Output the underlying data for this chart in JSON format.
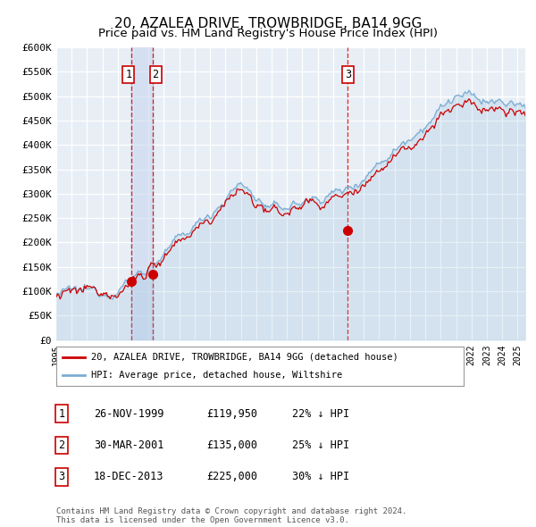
{
  "title": "20, AZALEA DRIVE, TROWBRIDGE, BA14 9GG",
  "subtitle": "Price paid vs. HM Land Registry's House Price Index (HPI)",
  "title_fontsize": 11,
  "subtitle_fontsize": 9.5,
  "ylim": [
    0,
    600000
  ],
  "yticks": [
    0,
    50000,
    100000,
    150000,
    200000,
    250000,
    300000,
    350000,
    400000,
    450000,
    500000,
    550000,
    600000
  ],
  "ytick_labels": [
    "£0",
    "£50K",
    "£100K",
    "£150K",
    "£200K",
    "£250K",
    "£300K",
    "£350K",
    "£400K",
    "£450K",
    "£500K",
    "£550K",
    "£600K"
  ],
  "xlim_start": 1995.0,
  "xlim_end": 2025.5,
  "background_color": "#ffffff",
  "plot_bg_color": "#e8eef5",
  "grid_color": "#ffffff",
  "hpi_color": "#7aadd4",
  "price_color": "#cc0000",
  "vline_color": "#cc0000",
  "purchase_dates": [
    1999.9,
    2001.25,
    2013.96
  ],
  "purchase_prices": [
    119950,
    135000,
    225000
  ],
  "purchase_labels": [
    "1",
    "2",
    "3"
  ],
  "label_box_edge": "#cc0000",
  "legend_line1": "20, AZALEA DRIVE, TROWBRIDGE, BA14 9GG (detached house)",
  "legend_line2": "HPI: Average price, detached house, Wiltshire",
  "table_rows": [
    {
      "num": "1",
      "date": "26-NOV-1999",
      "price": "£119,950",
      "pct": "22% ↓ HPI"
    },
    {
      "num": "2",
      "date": "30-MAR-2001",
      "price": "£135,000",
      "pct": "25% ↓ HPI"
    },
    {
      "num": "3",
      "date": "18-DEC-2013",
      "price": "£225,000",
      "pct": "30% ↓ HPI"
    }
  ],
  "footnote": "Contains HM Land Registry data © Crown copyright and database right 2024.\nThis data is licensed under the Open Government Licence v3.0.",
  "shade_regions": [
    {
      "start": 1999.9,
      "end": 2001.25
    }
  ]
}
